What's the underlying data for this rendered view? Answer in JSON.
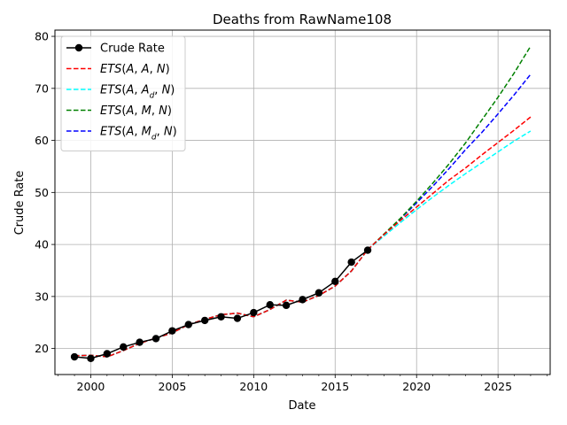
{
  "chart_data": {
    "type": "line",
    "title": "Deaths from RawName108",
    "xlabel": "Date",
    "ylabel": "Crude Rate",
    "xlim": [
      1997.8,
      2028.2
    ],
    "ylim": [
      15.0,
      81.2
    ],
    "x_ticks": [
      2000,
      2005,
      2010,
      2015,
      2020,
      2025
    ],
    "y_ticks": [
      20,
      30,
      40,
      50,
      60,
      70,
      80
    ],
    "grid": true,
    "legend_position": "top-left",
    "series": [
      {
        "name": "Crude Rate",
        "color": "#000000",
        "style": "solid-marker",
        "x": [
          1999,
          2000,
          2001,
          2002,
          2003,
          2004,
          2005,
          2006,
          2007,
          2008,
          2009,
          2010,
          2011,
          2012,
          2013,
          2014,
          2015,
          2016,
          2017
        ],
        "y": [
          18.4,
          18.1,
          19.0,
          20.3,
          21.2,
          21.9,
          23.4,
          24.6,
          25.4,
          26.1,
          25.8,
          26.9,
          28.4,
          28.3,
          29.4,
          30.7,
          32.9,
          36.6,
          38.9
        ]
      },
      {
        "name": "ETS(A, A, N)",
        "color": "#ff0000",
        "style": "dashed",
        "x": [
          1999,
          2000,
          2001,
          2002,
          2003,
          2004,
          2005,
          2006,
          2007,
          2008,
          2009,
          2010,
          2011,
          2012,
          2013,
          2014,
          2015,
          2016,
          2017,
          2018,
          2019,
          2020,
          2021,
          2022,
          2023,
          2024,
          2025,
          2026,
          2027
        ],
        "y": [
          18.6,
          18.7,
          18.4,
          19.6,
          21.0,
          22.0,
          23.0,
          24.6,
          25.6,
          26.5,
          26.8,
          26.1,
          27.5,
          29.3,
          28.9,
          30.2,
          32.0,
          34.9,
          39.0,
          41.9,
          44.6,
          47.2,
          49.8,
          52.4,
          54.7,
          57.2,
          59.6,
          62.0,
          64.5
        ]
      },
      {
        "name": "ETS(A, A_d, N)",
        "color": "#00ffff",
        "style": "dashed",
        "x": [
          1999,
          2000,
          2001,
          2002,
          2003,
          2004,
          2005,
          2006,
          2007,
          2008,
          2009,
          2010,
          2011,
          2012,
          2013,
          2014,
          2015,
          2016,
          2017,
          2018,
          2019,
          2020,
          2021,
          2022,
          2023,
          2024,
          2025,
          2026,
          2027
        ],
        "y": [
          18.6,
          18.7,
          18.4,
          19.6,
          21.0,
          22.0,
          23.0,
          24.6,
          25.6,
          26.5,
          26.8,
          26.1,
          27.5,
          29.3,
          28.9,
          30.2,
          32.0,
          34.9,
          39.0,
          41.6,
          44.2,
          46.7,
          49.1,
          51.4,
          53.6,
          55.7,
          57.8,
          59.9,
          61.8
        ]
      },
      {
        "name": "ETS(A, M, N)",
        "color": "#008000",
        "style": "dashed",
        "x": [
          1999,
          2000,
          2001,
          2002,
          2003,
          2004,
          2005,
          2006,
          2007,
          2008,
          2009,
          2010,
          2011,
          2012,
          2013,
          2014,
          2015,
          2016,
          2017,
          2018,
          2019,
          2020,
          2021,
          2022,
          2023,
          2024,
          2025,
          2026,
          2027
        ],
        "y": [
          18.6,
          18.7,
          18.4,
          19.6,
          21.0,
          22.0,
          23.0,
          24.6,
          25.6,
          26.5,
          26.8,
          26.1,
          27.5,
          29.3,
          28.9,
          30.2,
          32.0,
          34.9,
          39.0,
          42.0,
          45.0,
          48.3,
          51.8,
          55.5,
          59.5,
          63.9,
          68.3,
          73.0,
          78.1
        ]
      },
      {
        "name": "ETS(A, M_d, N)",
        "color": "#0000ff",
        "style": "dashed",
        "x": [
          1999,
          2000,
          2001,
          2002,
          2003,
          2004,
          2005,
          2006,
          2007,
          2008,
          2009,
          2010,
          2011,
          2012,
          2013,
          2014,
          2015,
          2016,
          2017,
          2018,
          2019,
          2020,
          2021,
          2022,
          2023,
          2024,
          2025,
          2026,
          2027
        ],
        "y": [
          18.6,
          18.7,
          18.4,
          19.6,
          21.0,
          22.0,
          23.0,
          24.6,
          25.6,
          26.5,
          26.8,
          26.1,
          27.5,
          29.3,
          28.9,
          30.2,
          32.0,
          34.9,
          39.0,
          41.9,
          44.9,
          48.0,
          51.2,
          54.6,
          58.2,
          61.5,
          65.1,
          68.8,
          72.7
        ]
      }
    ]
  }
}
